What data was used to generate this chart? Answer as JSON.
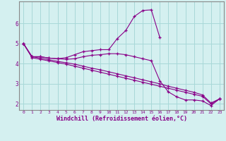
{
  "xlabel": "Windchill (Refroidissement éolien,°C)",
  "background_color": "#d4f0f0",
  "grid_color": "#a8d8d8",
  "line_color": "#880088",
  "x_values": [
    0,
    1,
    2,
    3,
    4,
    5,
    6,
    7,
    8,
    9,
    10,
    11,
    12,
    13,
    14,
    15,
    16,
    17,
    18,
    19,
    20,
    21,
    22,
    23
  ],
  "series1": [
    5.0,
    4.35,
    4.35,
    4.28,
    4.25,
    4.3,
    4.45,
    4.6,
    4.65,
    4.7,
    4.7,
    5.25,
    5.65,
    6.35,
    6.65,
    6.68,
    5.3,
    null,
    null,
    null,
    null,
    null,
    null,
    null
  ],
  "series2": [
    5.0,
    4.35,
    4.35,
    4.28,
    4.25,
    4.22,
    4.25,
    4.35,
    4.42,
    4.45,
    4.5,
    4.5,
    4.45,
    4.35,
    4.25,
    4.15,
    3.15,
    2.6,
    2.35,
    2.2,
    2.2,
    2.15,
    1.92,
    2.25
  ],
  "series3": [
    5.0,
    4.35,
    4.28,
    4.2,
    4.12,
    4.05,
    3.98,
    3.88,
    3.78,
    3.7,
    3.6,
    3.5,
    3.4,
    3.3,
    3.2,
    3.1,
    3.0,
    2.88,
    2.78,
    2.68,
    2.58,
    2.45,
    2.05,
    2.25
  ],
  "series4": [
    5.0,
    4.3,
    4.22,
    4.14,
    4.06,
    3.98,
    3.88,
    3.78,
    3.68,
    3.58,
    3.48,
    3.38,
    3.28,
    3.18,
    3.08,
    2.98,
    2.88,
    2.78,
    2.68,
    2.58,
    2.48,
    2.38,
    2.0,
    2.25
  ],
  "ylim": [
    1.7,
    7.1
  ],
  "xlim_min": -0.5,
  "xlim_max": 23.5,
  "yticks": [
    2,
    3,
    4,
    5,
    6
  ],
  "xtick_fontsize": 4.5,
  "ytick_fontsize": 5.5,
  "xlabel_fontsize": 6.0,
  "spine_color": "#888888",
  "marker_size": 3.0,
  "line_width": 0.8
}
